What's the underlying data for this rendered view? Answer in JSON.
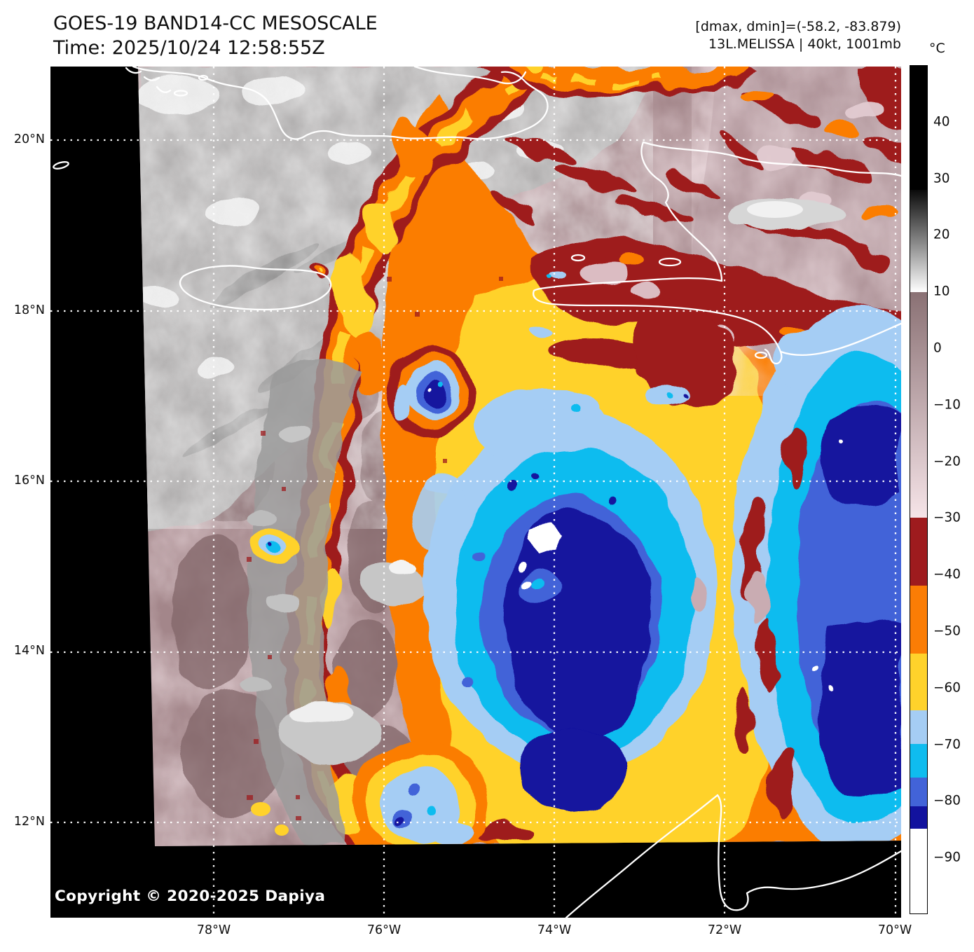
{
  "header": {
    "title_line1": "GOES-19 BAND14-CC MESOSCALE",
    "title_line2": "Time: 2025/10/24 12:58:55Z",
    "annotation_line1": "[dmax, dmin]=(-58.2, -83.879)",
    "annotation_line2": "13L.MELISSA | 40kt, 1001mb"
  },
  "colorbar": {
    "unit": "°C",
    "top_value": 50,
    "bottom_value": -100,
    "ticks": [
      {
        "value": 40,
        "label": "40"
      },
      {
        "value": 30,
        "label": "30"
      },
      {
        "value": 20,
        "label": "20"
      },
      {
        "value": 10,
        "label": "10"
      },
      {
        "value": 0,
        "label": "0"
      },
      {
        "value": -10,
        "label": "−10"
      },
      {
        "value": -20,
        "label": "−20"
      },
      {
        "value": -30,
        "label": "−30"
      },
      {
        "value": -40,
        "label": "−40"
      },
      {
        "value": -50,
        "label": "−50"
      },
      {
        "value": -60,
        "label": "−60"
      },
      {
        "value": -70,
        "label": "−70"
      },
      {
        "value": -80,
        "label": "−80"
      },
      {
        "value": -90,
        "label": "−90"
      }
    ],
    "segments": [
      {
        "from": 50,
        "to": 28,
        "color": "#000000"
      },
      {
        "from": 28,
        "to": 10,
        "color": "#0a0a0a",
        "color2": "#ffffff"
      },
      {
        "from": 10,
        "to": -30,
        "color": "#8a7174",
        "color2": "#f6e4e8"
      },
      {
        "from": -30,
        "to": -42,
        "color": "#9e1b1e"
      },
      {
        "from": -42,
        "to": -54,
        "color": "#fb7d05"
      },
      {
        "from": -54,
        "to": -64,
        "color": "#ffd22b"
      },
      {
        "from": -64,
        "to": -70,
        "color": "#a5cdf4"
      },
      {
        "from": -70,
        "to": -76,
        "color": "#0fbcef"
      },
      {
        "from": -76,
        "to": -81,
        "color": "#4263d8"
      },
      {
        "from": -81,
        "to": -85,
        "color": "#12129e"
      },
      {
        "from": -85,
        "to": -100,
        "color": "#ffffff"
      }
    ]
  },
  "axes": {
    "lat_labels": [
      "20°N",
      "18°N",
      "16°N",
      "14°N",
      "12°N"
    ],
    "lon_labels": [
      "78°W",
      "76°W",
      "74°W",
      "72°W",
      "70°W"
    ]
  },
  "map": {
    "copyright": "Copyright © 2020-2025 Dapiya",
    "palette": {
      "no_data": "#000000",
      "warm_cloud_gray": "#b4b4b4",
      "clear_sky_mauve": "#a3868a",
      "minus30_dark_red": "#9e1b1e",
      "minus42_orange": "#fb7d05",
      "minus54_yellow": "#ffd22b",
      "minus64_pale_blue": "#a5cdf4",
      "minus70_cyan": "#0fbcef",
      "minus76_royal_blue": "#4263d8",
      "minus81_navy": "#12129e",
      "overshoot_white": "#ffffff",
      "coastline": "#ffffff",
      "gridline": "#ffffff"
    }
  }
}
